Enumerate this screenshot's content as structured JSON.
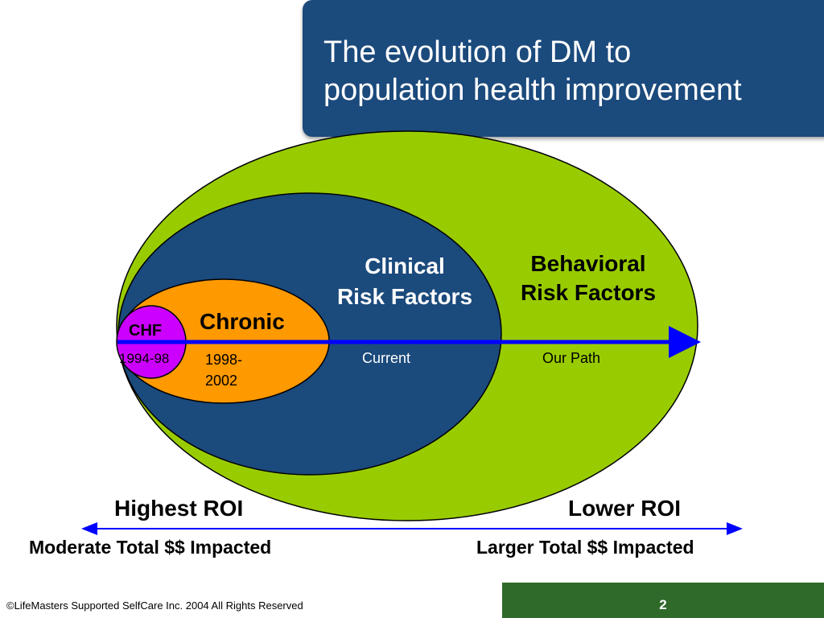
{
  "title": {
    "line1": "The evolution of DM to",
    "line2": "population health improvement"
  },
  "colors": {
    "title_bg": "#1b4a7c",
    "outer_ellipse": "#99cc00",
    "clinical_ellipse": "#1b4a7c",
    "chronic_ellipse": "#ff9900",
    "chf_ellipse": "#cc00ff",
    "arrow": "#0000ff",
    "footer_bar": "#2f6a2b"
  },
  "diagram": {
    "behavioral": {
      "line1": "Behavioral",
      "line2": "Risk Factors"
    },
    "clinical": {
      "line1": "Clinical",
      "line2": "Risk Factors"
    },
    "chronic": {
      "label": "Chronic"
    },
    "chf": {
      "label": "CHF"
    },
    "timeline": {
      "chf_period": "1994-98",
      "chronic_period_line1": "1998-",
      "chronic_period_line2": "2002",
      "clinical_period": "Current",
      "behavioral_period": "Our Path"
    }
  },
  "roi_scale": {
    "left_label": "Highest ROI",
    "right_label": "Lower ROI",
    "left_sub": "Moderate Total $$ Impacted",
    "right_sub": "Larger Total $$ Impacted"
  },
  "footer": {
    "copyright": "©LifeMasters Supported SelfCare Inc. 2004 All Rights Reserved",
    "page_number": "2"
  }
}
